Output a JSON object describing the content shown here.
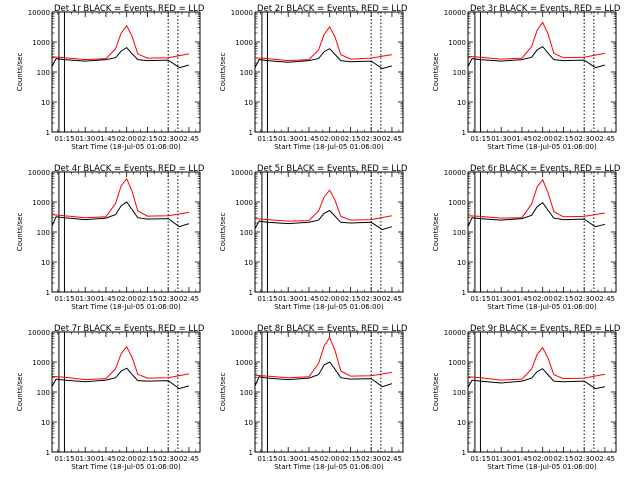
{
  "figure": {
    "x_title": "Start Time (18-Jul-05 01:06:00)",
    "y_title": "Counts/sec",
    "x_tick_labels": [
      "01:15",
      "01:30",
      "01:45",
      "02:00",
      "02:15",
      "02:30",
      "02:45"
    ],
    "y_tick_labels": [
      "1",
      "10",
      "100",
      "1000",
      "10000"
    ],
    "colors": {
      "events": "#000000",
      "lld": "#ff0000",
      "grid": "#000000"
    }
  },
  "chart_data": [
    {
      "type": "line",
      "title": "Det 1r BLACK = Events, RED = LLD",
      "xlabel": "Start Time (18-Jul-05 01:06:00)",
      "ylabel": "Counts/sec",
      "y_scale": "log",
      "ylim": [
        1,
        10000
      ],
      "xlim_minutes_since_start": [
        0,
        107
      ],
      "x_ticks": [
        "01:15",
        "01:30",
        "01:45",
        "02:00",
        "02:15",
        "02:30",
        "02:45"
      ],
      "vertical_markers": [
        "01:11",
        "01:15",
        "02:30",
        "02:37"
      ],
      "series": [
        {
          "color": "#ff0000",
          "x": [
            "01:06",
            "01:15",
            "01:30",
            "01:45",
            "01:52",
            "01:56",
            "02:00",
            "02:04",
            "02:08",
            "02:15",
            "02:30",
            "02:45"
          ],
          "values": [
            320,
            300,
            260,
            280,
            600,
            2000,
            3500,
            1500,
            400,
            290,
            300,
            400
          ]
        },
        {
          "color": "#000000",
          "x": [
            "01:06",
            "01:09",
            "01:15",
            "01:30",
            "01:45",
            "01:52",
            "01:56",
            "02:00",
            "02:04",
            "02:08",
            "02:15",
            "02:30",
            "02:38",
            "02:45"
          ],
          "values": [
            150,
            280,
            260,
            230,
            260,
            300,
            500,
            650,
            400,
            260,
            240,
            250,
            140,
            170
          ]
        }
      ]
    },
    {
      "type": "line",
      "title": "Det 2r BLACK = Events, RED = LLD",
      "xlabel": "Start Time (18-Jul-05 01:06:00)",
      "ylabel": "Counts/sec",
      "y_scale": "log",
      "ylim": [
        1,
        10000
      ],
      "xlim_minutes_since_start": [
        0,
        107
      ],
      "x_ticks": [
        "01:15",
        "01:30",
        "01:45",
        "02:00",
        "02:15",
        "02:30",
        "02:45"
      ],
      "vertical_markers": [
        "01:11",
        "01:15",
        "02:30",
        "02:37"
      ],
      "series": [
        {
          "color": "#ff0000",
          "x": [
            "01:06",
            "01:15",
            "01:30",
            "01:45",
            "01:52",
            "01:56",
            "02:00",
            "02:04",
            "02:08",
            "02:15",
            "02:30",
            "02:45"
          ],
          "values": [
            300,
            280,
            240,
            260,
            550,
            1800,
            3200,
            1400,
            380,
            270,
            290,
            380
          ]
        },
        {
          "color": "#000000",
          "x": [
            "01:06",
            "01:09",
            "01:15",
            "01:30",
            "01:45",
            "01:52",
            "01:56",
            "02:00",
            "02:04",
            "02:08",
            "02:15",
            "02:30",
            "02:38",
            "02:45"
          ],
          "values": [
            140,
            260,
            240,
            210,
            240,
            280,
            480,
            600,
            380,
            240,
            220,
            230,
            130,
            160
          ]
        }
      ]
    },
    {
      "type": "line",
      "title": "Det 3r BLACK = Events, RED = LLD",
      "xlabel": "Start Time (18-Jul-05 01:06:00)",
      "ylabel": "Counts/sec",
      "y_scale": "log",
      "ylim": [
        1,
        10000
      ],
      "xlim_minutes_since_start": [
        0,
        107
      ],
      "x_ticks": [
        "01:15",
        "01:30",
        "01:45",
        "02:00",
        "02:15",
        "02:30",
        "02:45"
      ],
      "vertical_markers": [
        "01:11",
        "01:15",
        "02:30",
        "02:37"
      ],
      "series": [
        {
          "color": "#ff0000",
          "x": [
            "01:06",
            "01:15",
            "01:30",
            "01:45",
            "01:52",
            "01:56",
            "02:00",
            "02:04",
            "02:08",
            "02:15",
            "02:30",
            "02:45"
          ],
          "values": [
            330,
            310,
            270,
            290,
            700,
            2500,
            4500,
            1800,
            420,
            300,
            310,
            420
          ]
        },
        {
          "color": "#000000",
          "x": [
            "01:06",
            "01:09",
            "01:15",
            "01:30",
            "01:45",
            "01:52",
            "01:56",
            "02:00",
            "02:04",
            "02:08",
            "02:15",
            "02:30",
            "02:38",
            "02:45"
          ],
          "values": [
            150,
            280,
            260,
            230,
            260,
            310,
            550,
            700,
            420,
            260,
            240,
            250,
            140,
            170
          ]
        }
      ]
    },
    {
      "type": "line",
      "title": "Det 4r BLACK = Events, RED = LLD",
      "xlabel": "Start Time (18-Jul-05 01:06:00)",
      "ylabel": "Counts/sec",
      "y_scale": "log",
      "ylim": [
        1,
        10000
      ],
      "xlim_minutes_since_start": [
        0,
        107
      ],
      "x_ticks": [
        "01:15",
        "01:30",
        "01:45",
        "02:00",
        "02:15",
        "02:30",
        "02:45"
      ],
      "vertical_markers": [
        "01:11",
        "01:15",
        "02:30",
        "02:37"
      ],
      "series": [
        {
          "color": "#ff0000",
          "x": [
            "01:06",
            "01:15",
            "01:30",
            "01:45",
            "01:52",
            "01:56",
            "02:00",
            "02:04",
            "02:08",
            "02:15",
            "02:30",
            "02:45"
          ],
          "values": [
            380,
            350,
            300,
            320,
            900,
            3500,
            6000,
            2200,
            500,
            340,
            350,
            450
          ]
        },
        {
          "color": "#000000",
          "x": [
            "01:06",
            "01:09",
            "01:15",
            "01:30",
            "01:45",
            "01:52",
            "01:56",
            "02:00",
            "02:04",
            "02:08",
            "02:15",
            "02:30",
            "02:38",
            "02:45"
          ],
          "values": [
            160,
            320,
            300,
            260,
            290,
            380,
            750,
            1000,
            550,
            300,
            270,
            280,
            150,
            190
          ]
        }
      ]
    },
    {
      "type": "line",
      "title": "Det 5r BLACK = Events, RED = LLD",
      "xlabel": "Start Time (18-Jul-05 01:06:00)",
      "ylabel": "Counts/sec",
      "y_scale": "log",
      "ylim": [
        1,
        10000
      ],
      "xlim_minutes_since_start": [
        0,
        107
      ],
      "x_ticks": [
        "01:15",
        "01:30",
        "01:45",
        "02:00",
        "02:15",
        "02:30",
        "02:45"
      ],
      "vertical_markers": [
        "01:11",
        "01:15",
        "02:30",
        "02:37"
      ],
      "series": [
        {
          "color": "#ff0000",
          "x": [
            "01:06",
            "01:15",
            "01:30",
            "01:45",
            "01:52",
            "01:56",
            "02:00",
            "02:04",
            "02:08",
            "02:15",
            "02:30",
            "02:45"
          ],
          "values": [
            280,
            260,
            230,
            240,
            500,
            1500,
            2500,
            1100,
            330,
            250,
            260,
            350
          ]
        },
        {
          "color": "#000000",
          "x": [
            "01:06",
            "01:09",
            "01:15",
            "01:30",
            "01:45",
            "01:52",
            "01:56",
            "02:00",
            "02:04",
            "02:08",
            "02:15",
            "02:30",
            "02:38",
            "02:45"
          ],
          "values": [
            130,
            230,
            210,
            190,
            210,
            250,
            420,
            520,
            330,
            210,
            200,
            210,
            120,
            150
          ]
        }
      ]
    },
    {
      "type": "line",
      "title": "Det 6r BLACK = Events, RED = LLD",
      "xlabel": "Start Time (18-Jul-05 01:06:00)",
      "ylabel": "Counts/sec",
      "y_scale": "log",
      "ylim": [
        1,
        10000
      ],
      "xlim_minutes_since_start": [
        0,
        107
      ],
      "x_ticks": [
        "01:15",
        "01:30",
        "01:45",
        "02:00",
        "02:15",
        "02:30",
        "02:45"
      ],
      "vertical_markers": [
        "01:11",
        "01:15",
        "02:30",
        "02:37"
      ],
      "series": [
        {
          "color": "#ff0000",
          "x": [
            "01:06",
            "01:15",
            "01:30",
            "01:45",
            "01:52",
            "01:56",
            "02:00",
            "02:04",
            "02:08",
            "02:15",
            "02:30",
            "02:45"
          ],
          "values": [
            350,
            330,
            290,
            300,
            850,
            3200,
            5500,
            2000,
            480,
            320,
            330,
            430
          ]
        },
        {
          "color": "#000000",
          "x": [
            "01:06",
            "01:09",
            "01:15",
            "01:30",
            "01:45",
            "01:52",
            "01:56",
            "02:00",
            "02:04",
            "02:08",
            "02:15",
            "02:30",
            "02:38",
            "02:45"
          ],
          "values": [
            150,
            300,
            280,
            250,
            280,
            360,
            700,
            950,
            520,
            290,
            260,
            270,
            150,
            180
          ]
        }
      ]
    },
    {
      "type": "line",
      "title": "Det 7r BLACK = Events, RED = LLD",
      "xlabel": "Start Time (18-Jul-05 01:06:00)",
      "ylabel": "Counts/sec",
      "y_scale": "log",
      "ylim": [
        1,
        10000
      ],
      "xlim_minutes_since_start": [
        0,
        107
      ],
      "x_ticks": [
        "01:15",
        "01:30",
        "01:45",
        "02:00",
        "02:15",
        "02:30",
        "02:45"
      ],
      "vertical_markers": [
        "01:11",
        "01:15",
        "02:30",
        "02:37"
      ],
      "series": [
        {
          "color": "#ff0000",
          "x": [
            "01:06",
            "01:15",
            "01:30",
            "01:45",
            "01:52",
            "01:56",
            "02:00",
            "02:04",
            "02:08",
            "02:15",
            "02:30",
            "02:45"
          ],
          "values": [
            330,
            310,
            260,
            280,
            600,
            1900,
            3200,
            1400,
            390,
            290,
            300,
            400
          ]
        },
        {
          "color": "#000000",
          "x": [
            "01:06",
            "01:09",
            "01:15",
            "01:30",
            "01:45",
            "01:52",
            "01:56",
            "02:00",
            "02:04",
            "02:08",
            "02:15",
            "02:30",
            "02:38",
            "02:45"
          ],
          "values": [
            150,
            270,
            250,
            220,
            250,
            300,
            500,
            620,
            380,
            240,
            230,
            240,
            130,
            160
          ]
        }
      ]
    },
    {
      "type": "line",
      "title": "Det 8r BLACK = Events, RED = LLD",
      "xlabel": "Start Time (18-Jul-05 01:06:00)",
      "ylabel": "Counts/sec",
      "y_scale": "log",
      "ylim": [
        1,
        10000
      ],
      "xlim_minutes_since_start": [
        0,
        107
      ],
      "x_ticks": [
        "01:15",
        "01:30",
        "01:45",
        "02:00",
        "02:15",
        "02:30",
        "02:45"
      ],
      "vertical_markers": [
        "01:11",
        "01:15",
        "02:30",
        "02:37"
      ],
      "series": [
        {
          "color": "#ff0000",
          "x": [
            "01:06",
            "01:15",
            "01:30",
            "01:45",
            "01:52",
            "01:56",
            "02:00",
            "02:04",
            "02:08",
            "02:15",
            "02:30",
            "02:45"
          ],
          "values": [
            360,
            340,
            300,
            320,
            900,
            3500,
            6500,
            2300,
            500,
            340,
            350,
            450
          ]
        },
        {
          "color": "#000000",
          "x": [
            "01:06",
            "01:09",
            "01:15",
            "01:30",
            "01:45",
            "01:52",
            "01:56",
            "02:00",
            "02:04",
            "02:08",
            "02:15",
            "02:30",
            "02:38",
            "02:45"
          ],
          "values": [
            160,
            320,
            290,
            260,
            290,
            380,
            800,
            1000,
            560,
            300,
            270,
            280,
            150,
            190
          ]
        }
      ]
    },
    {
      "type": "line",
      "title": "Det 9r BLACK = Events, RED = LLD",
      "xlabel": "Start Time (18-Jul-05 01:06:00)",
      "ylabel": "Counts/sec",
      "y_scale": "log",
      "ylim": [
        1,
        10000
      ],
      "xlim_minutes_since_start": [
        0,
        107
      ],
      "x_ticks": [
        "01:15",
        "01:30",
        "01:45",
        "02:00",
        "02:15",
        "02:30",
        "02:45"
      ],
      "vertical_markers": [
        "01:11",
        "01:15",
        "02:30",
        "02:37"
      ],
      "series": [
        {
          "color": "#ff0000",
          "x": [
            "01:06",
            "01:15",
            "01:30",
            "01:45",
            "01:52",
            "01:56",
            "02:00",
            "02:04",
            "02:08",
            "02:15",
            "02:30",
            "02:45"
          ],
          "values": [
            320,
            300,
            250,
            270,
            580,
            1800,
            3000,
            1300,
            380,
            280,
            290,
            390
          ]
        },
        {
          "color": "#000000",
          "x": [
            "01:06",
            "01:09",
            "01:15",
            "01:30",
            "01:45",
            "01:52",
            "01:56",
            "02:00",
            "02:04",
            "02:08",
            "02:15",
            "02:30",
            "02:38",
            "02:45"
          ],
          "values": [
            140,
            250,
            230,
            200,
            230,
            290,
            480,
            600,
            370,
            230,
            220,
            230,
            130,
            150
          ]
        }
      ]
    }
  ]
}
